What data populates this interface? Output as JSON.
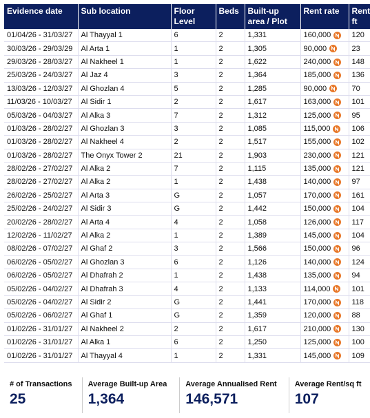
{
  "table": {
    "header": [
      "Evidence date",
      "Sub location",
      "Floor Level",
      "Beds",
      "Built-up area / Plot",
      "Rent rate",
      "Rent sq ft"
    ],
    "rows": [
      [
        "01/04/26 - 31/03/27",
        "Al Thayyal 1",
        "6",
        "2",
        "1,331",
        "160,000",
        "120"
      ],
      [
        "30/03/26 - 29/03/29",
        "Al Arta 1",
        "1",
        "2",
        "1,305",
        "90,000",
        "23"
      ],
      [
        "29/03/26 - 28/03/27",
        "Al Nakheel 1",
        "1",
        "2",
        "1,622",
        "240,000",
        "148"
      ],
      [
        "25/03/26 - 24/03/27",
        "Al Jaz 4",
        "3",
        "2",
        "1,364",
        "185,000",
        "136"
      ],
      [
        "13/03/26 - 12/03/27",
        "Al Ghozlan 4",
        "5",
        "2",
        "1,285",
        "90,000",
        "70"
      ],
      [
        "11/03/26 - 10/03/27",
        "Al Sidir 1",
        "2",
        "2",
        "1,617",
        "163,000",
        "101"
      ],
      [
        "05/03/26 - 04/03/27",
        "Al Alka 3",
        "7",
        "2",
        "1,312",
        "125,000",
        "95"
      ],
      [
        "01/03/26 - 28/02/27",
        "Al Ghozlan 3",
        "3",
        "2",
        "1,085",
        "115,000",
        "106"
      ],
      [
        "01/03/26 - 28/02/27",
        "Al Nakheel 4",
        "2",
        "2",
        "1,517",
        "155,000",
        "102"
      ],
      [
        "01/03/26 - 28/02/27",
        "The Onyx Tower 2",
        "21",
        "2",
        "1,903",
        "230,000",
        "121"
      ],
      [
        "28/02/26 - 27/02/27",
        "Al Alka 2",
        "7",
        "2",
        "1,115",
        "135,000",
        "121"
      ],
      [
        "28/02/26 - 27/02/27",
        "Al Alka 2",
        "1",
        "2",
        "1,438",
        "140,000",
        "97"
      ],
      [
        "26/02/26 - 25/02/27",
        "Al Arta 3",
        "G",
        "2",
        "1,057",
        "170,000",
        "161"
      ],
      [
        "25/02/26 - 24/02/27",
        "Al Sidir 3",
        "G",
        "2",
        "1,442",
        "150,000",
        "104"
      ],
      [
        "20/02/26 - 28/02/27",
        "Al Arta 4",
        "4",
        "2",
        "1,058",
        "126,000",
        "117"
      ],
      [
        "12/02/26 - 11/02/27",
        "Al Alka 2",
        "1",
        "2",
        "1,389",
        "145,000",
        "104"
      ],
      [
        "08/02/26 - 07/02/27",
        "Al Ghaf 2",
        "3",
        "2",
        "1,566",
        "150,000",
        "96"
      ],
      [
        "06/02/26 - 05/02/27",
        "Al Ghozlan 3",
        "6",
        "2",
        "1,126",
        "140,000",
        "124"
      ],
      [
        "06/02/26 - 05/02/27",
        "Al Dhafrah 2",
        "1",
        "2",
        "1,438",
        "135,000",
        "94"
      ],
      [
        "05/02/26 - 04/02/27",
        "Al Dhafrah 3",
        "4",
        "2",
        "1,133",
        "114,000",
        "101"
      ],
      [
        "05/02/26 - 04/02/27",
        "Al Sidir 2",
        "G",
        "2",
        "1,441",
        "170,000",
        "118"
      ],
      [
        "05/02/26 - 06/02/27",
        "Al Ghaf 1",
        "G",
        "2",
        "1,359",
        "120,000",
        "88"
      ],
      [
        "01/02/26 - 31/01/27",
        "Al Nakheel 2",
        "2",
        "2",
        "1,617",
        "210,000",
        "130"
      ],
      [
        "01/02/26 - 31/01/27",
        "Al Alka 1",
        "6",
        "2",
        "1,250",
        "125,000",
        "100"
      ],
      [
        "01/02/26 - 31/01/27",
        "Al Thayyal 4",
        "1",
        "2",
        "1,331",
        "145,000",
        "109"
      ]
    ]
  },
  "summary": [
    {
      "label": "# of Transactions",
      "value": "25"
    },
    {
      "label": "Average Built-up Area",
      "value": "1,364"
    },
    {
      "label": "Average Annualised Rent",
      "value": "146,571"
    },
    {
      "label": "Average Rent/sq ft",
      "value": "107"
    }
  ]
}
